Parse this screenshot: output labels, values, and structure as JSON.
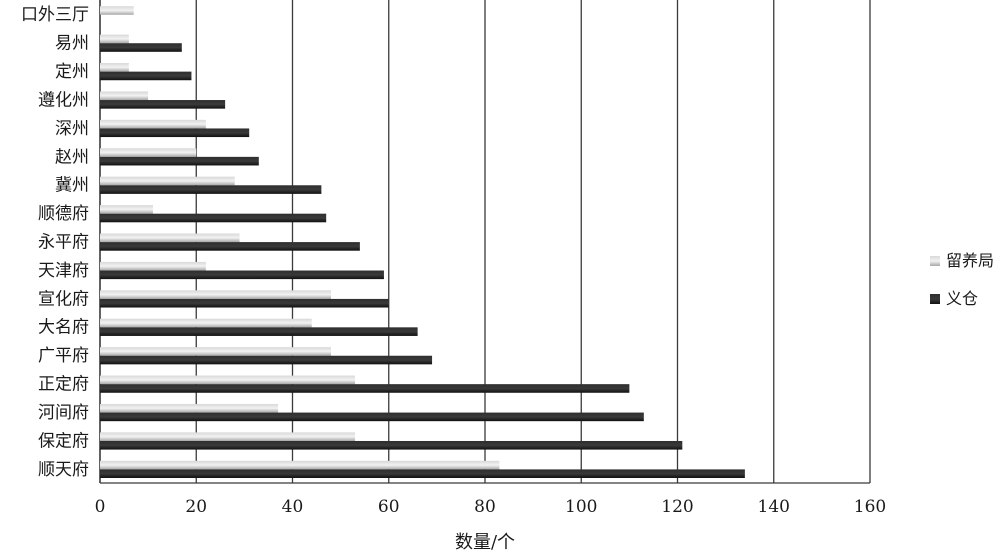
{
  "chart_data": {
    "type": "bar",
    "orientation": "horizontal",
    "categories": [
      "顺天府",
      "保定府",
      "河间府",
      "正定府",
      "广平府",
      "大名府",
      "宣化府",
      "天津府",
      "永平府",
      "顺德府",
      "冀州",
      "赵州",
      "深州",
      "遵化州",
      "定州",
      "易州",
      "口外三厅"
    ],
    "series": [
      {
        "name": "留养局",
        "values": [
          83,
          53,
          37,
          53,
          48,
          44,
          48,
          22,
          29,
          11,
          28,
          20,
          22,
          10,
          6,
          6,
          7
        ]
      },
      {
        "name": "义仓",
        "values": [
          134,
          121,
          113,
          110,
          69,
          66,
          60,
          59,
          54,
          47,
          46,
          33,
          31,
          26,
          19,
          17,
          0
        ]
      }
    ],
    "xlabel": "数量/个",
    "ylabel": "",
    "xlim": [
      0,
      160
    ],
    "xticks": [
      0,
      20,
      40,
      60,
      80,
      100,
      120,
      140,
      160
    ],
    "grid": "vertical",
    "legend_position": "right",
    "colors": {
      "留养局": "#b5b5b5",
      "义仓": "#1e1e1e",
      "grid": "#3a3a3a"
    }
  }
}
